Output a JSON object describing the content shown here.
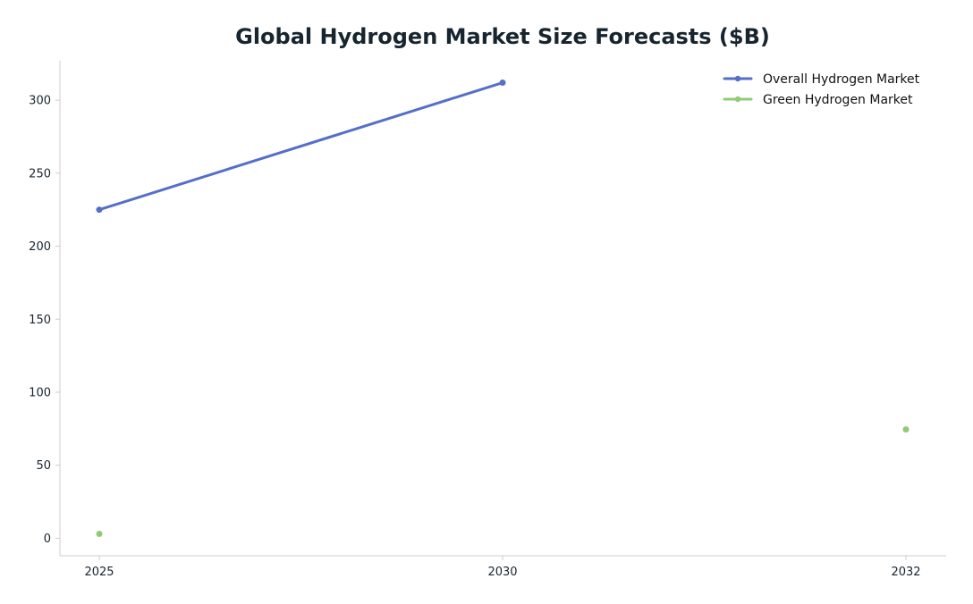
{
  "chart_data": {
    "type": "line",
    "title": "Global Hydrogen Market Size Forecasts ($B)",
    "xlabel": "",
    "ylabel": "",
    "x_categories": [
      "2025",
      "2030",
      "2032"
    ],
    "yticks": [
      0,
      50,
      100,
      150,
      200,
      250,
      300
    ],
    "ylim": [
      -12,
      327
    ],
    "grid": false,
    "legend_position": "top-right",
    "series": [
      {
        "name": "Overall Hydrogen Market",
        "color": "#5470c6",
        "points": [
          {
            "x": "2025",
            "y": 225
          },
          {
            "x": "2030",
            "y": 312
          }
        ]
      },
      {
        "name": "Green Hydrogen Market",
        "color": "#91cc75",
        "points": [
          {
            "x": "2025",
            "y": 3
          },
          {
            "x": "2032",
            "y": 74.5
          }
        ]
      }
    ]
  }
}
